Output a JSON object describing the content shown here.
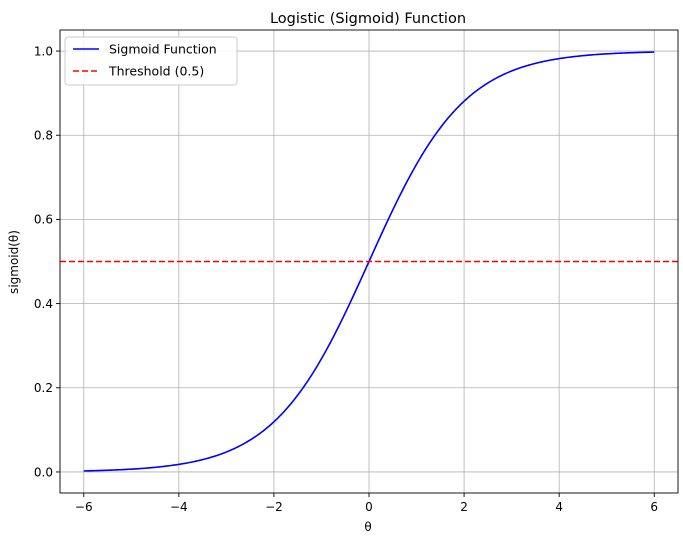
{
  "chart_data": {
    "type": "line",
    "title": "Logistic (Sigmoid) Function",
    "xlabel": "θ",
    "ylabel": "sigmoid(θ)",
    "xlim": [
      -6.5,
      6.5
    ],
    "ylim": [
      -0.05,
      1.05
    ],
    "x_ticks": [
      -6,
      -4,
      -2,
      0,
      2,
      4,
      6
    ],
    "x_tick_labels": [
      "−6",
      "−4",
      "−2",
      "0",
      "2",
      "4",
      "6"
    ],
    "y_ticks": [
      0.0,
      0.2,
      0.4,
      0.6,
      0.8,
      1.0
    ],
    "y_tick_labels": [
      "0.0",
      "0.2",
      "0.4",
      "0.6",
      "0.8",
      "1.0"
    ],
    "grid": true,
    "legend_placement": "top-left",
    "series": [
      {
        "name": "Sigmoid Function",
        "style": "solid",
        "color": "#0000ff",
        "x": [
          -6,
          -5.5,
          -5,
          -4.5,
          -4,
          -3.5,
          -3,
          -2.5,
          -2,
          -1.5,
          -1,
          -0.5,
          0,
          0.5,
          1,
          1.5,
          2,
          2.5,
          3,
          3.5,
          4,
          4.5,
          5,
          5.5,
          6
        ],
        "y": [
          0.0025,
          0.0041,
          0.0067,
          0.011,
          0.018,
          0.0293,
          0.0474,
          0.0759,
          0.1192,
          0.1824,
          0.2689,
          0.3775,
          0.5,
          0.6225,
          0.7311,
          0.8176,
          0.8808,
          0.9241,
          0.9526,
          0.9707,
          0.982,
          0.989,
          0.9933,
          0.9959,
          0.9975
        ]
      },
      {
        "name": "Threshold (0.5)",
        "style": "dashed",
        "color": "#ff0000",
        "y_constant": 0.5
      }
    ]
  }
}
